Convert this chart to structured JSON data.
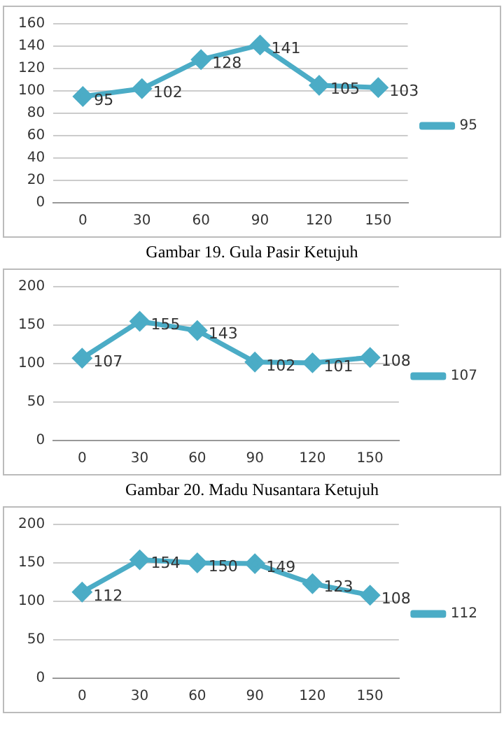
{
  "chart_data": [
    {
      "type": "line",
      "categories": [
        "0",
        "30",
        "60",
        "90",
        "120",
        "150"
      ],
      "series": [
        {
          "name": "95",
          "color": "#4bacc6",
          "values": [
            95,
            102,
            128,
            141,
            105,
            103
          ]
        }
      ],
      "ylim": [
        0,
        160
      ],
      "yticks": [
        0,
        20,
        40,
        60,
        80,
        100,
        120,
        140,
        160
      ],
      "grid": "y",
      "legend": "right",
      "marker": "diamond",
      "data_labels": true,
      "annotations": [
        "Gambar 19. Gula Pasir Ketujuh"
      ]
    },
    {
      "type": "line",
      "categories": [
        "0",
        "30",
        "60",
        "90",
        "120",
        "150"
      ],
      "series": [
        {
          "name": "107",
          "color": "#4bacc6",
          "values": [
            107,
            155,
            143,
            102,
            101,
            108
          ]
        }
      ],
      "ylim": [
        0,
        200
      ],
      "yticks": [
        0,
        50,
        100,
        150,
        200
      ],
      "grid": "y",
      "legend": "right",
      "marker": "diamond",
      "data_labels": true,
      "annotations": [
        "Gambar 20. Madu Nusantara Ketujuh"
      ]
    },
    {
      "type": "line",
      "categories": [
        "0",
        "30",
        "60",
        "90",
        "120",
        "150"
      ],
      "series": [
        {
          "name": "112",
          "color": "#4bacc6",
          "values": [
            112,
            154,
            150,
            149,
            123,
            108
          ]
        }
      ],
      "ylim": [
        0,
        200
      ],
      "yticks": [
        0,
        50,
        100,
        150,
        200
      ],
      "grid": "y",
      "legend": "right",
      "marker": "diamond",
      "data_labels": true
    }
  ]
}
